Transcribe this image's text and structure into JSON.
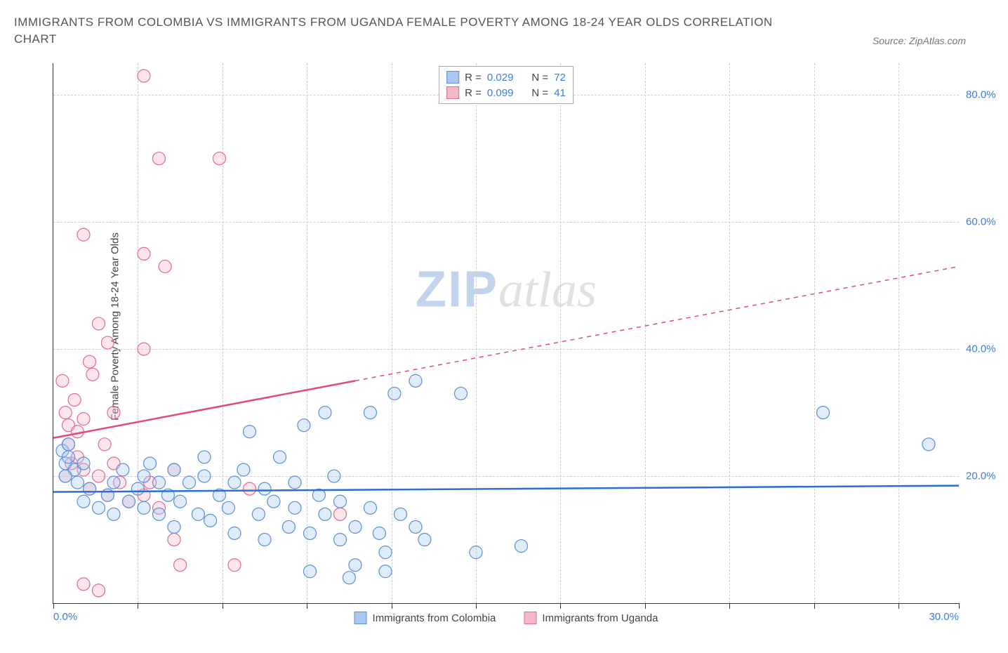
{
  "title": "IMMIGRANTS FROM COLOMBIA VS IMMIGRANTS FROM UGANDA FEMALE POVERTY AMONG 18-24 YEAR OLDS CORRELATION CHART",
  "source": "Source: ZipAtlas.com",
  "y_axis_label": "Female Poverty Among 18-24 Year Olds",
  "watermark_zip": "ZIP",
  "watermark_atlas": "atlas",
  "chart": {
    "type": "scatter",
    "background_color": "#ffffff",
    "grid_color": "#cccccc",
    "axis_color": "#333333",
    "tick_color": "#3b7dd8",
    "xlim": [
      0,
      30
    ],
    "ylim": [
      0,
      85
    ],
    "x_ticks": [
      0,
      2.8,
      5.6,
      8.4,
      11.2,
      14,
      16.8,
      19.6,
      22.4,
      25.2,
      28,
      30
    ],
    "x_tick_labels": {
      "0": "0.0%",
      "30": "30.0%"
    },
    "y_gridlines": [
      20,
      40,
      60,
      80
    ],
    "y_tick_labels": {
      "20": "20.0%",
      "40": "40.0%",
      "60": "60.0%",
      "80": "80.0%"
    },
    "marker_radius": 9,
    "marker_fill_opacity": 0.35,
    "marker_stroke_width": 1.2,
    "trend_line_width": 2.5,
    "series": [
      {
        "name": "Immigrants from Colombia",
        "legend_label": "Immigrants from Colombia",
        "color_fill": "#a8c8f0",
        "color_stroke": "#5b8fd6",
        "trend_color": "#2b6fd6",
        "R": "0.029",
        "N": "72",
        "trend": {
          "x1": 0,
          "y1": 17.5,
          "x2": 30,
          "y2": 18.5
        },
        "trend_solid_until_x": 30,
        "points": [
          [
            0.3,
            24
          ],
          [
            0.4,
            22
          ],
          [
            0.5,
            25
          ],
          [
            0.5,
            23
          ],
          [
            0.7,
            21
          ],
          [
            0.4,
            20
          ],
          [
            0.8,
            19
          ],
          [
            1.0,
            22
          ],
          [
            1.2,
            18
          ],
          [
            1.0,
            16
          ],
          [
            1.5,
            15
          ],
          [
            1.8,
            17
          ],
          [
            2.0,
            19
          ],
          [
            2.0,
            14
          ],
          [
            2.3,
            21
          ],
          [
            2.5,
            16
          ],
          [
            2.8,
            18
          ],
          [
            3.0,
            15
          ],
          [
            3.0,
            20
          ],
          [
            3.2,
            22
          ],
          [
            3.5,
            14
          ],
          [
            3.5,
            19
          ],
          [
            3.8,
            17
          ],
          [
            4.0,
            21
          ],
          [
            4.0,
            12
          ],
          [
            4.2,
            16
          ],
          [
            4.5,
            19
          ],
          [
            4.8,
            14
          ],
          [
            5.0,
            20
          ],
          [
            5.0,
            23
          ],
          [
            5.2,
            13
          ],
          [
            5.5,
            17
          ],
          [
            5.8,
            15
          ],
          [
            6.0,
            19
          ],
          [
            6.0,
            11
          ],
          [
            6.3,
            21
          ],
          [
            6.5,
            27
          ],
          [
            6.8,
            14
          ],
          [
            7.0,
            18
          ],
          [
            7.0,
            10
          ],
          [
            7.3,
            16
          ],
          [
            7.5,
            23
          ],
          [
            7.8,
            12
          ],
          [
            8.0,
            19
          ],
          [
            8.0,
            15
          ],
          [
            8.3,
            28
          ],
          [
            8.5,
            11
          ],
          [
            8.5,
            5
          ],
          [
            8.8,
            17
          ],
          [
            9.0,
            30
          ],
          [
            9.0,
            14
          ],
          [
            9.3,
            20
          ],
          [
            9.5,
            10
          ],
          [
            9.5,
            16
          ],
          [
            9.8,
            4
          ],
          [
            10.0,
            12
          ],
          [
            10.0,
            6
          ],
          [
            10.5,
            30
          ],
          [
            10.5,
            15
          ],
          [
            10.8,
            11
          ],
          [
            11.0,
            8
          ],
          [
            11.0,
            5
          ],
          [
            11.3,
            33
          ],
          [
            11.5,
            14
          ],
          [
            12.0,
            35
          ],
          [
            12.0,
            12
          ],
          [
            12.3,
            10
          ],
          [
            13.5,
            33
          ],
          [
            14.0,
            8
          ],
          [
            15.5,
            9
          ],
          [
            25.5,
            30
          ],
          [
            29.0,
            25
          ]
        ]
      },
      {
        "name": "Immigrants from Uganda",
        "legend_label": "Immigrants from Uganda",
        "color_fill": "#f5b8c9",
        "color_stroke": "#e06b8f",
        "trend_color": "#e04b7a",
        "R": "0.099",
        "N": "41",
        "trend": {
          "x1": 0,
          "y1": 26,
          "x2": 30,
          "y2": 53
        },
        "trend_solid_until_x": 10,
        "points": [
          [
            0.3,
            35
          ],
          [
            0.4,
            30
          ],
          [
            0.5,
            28
          ],
          [
            0.5,
            25
          ],
          [
            0.6,
            22
          ],
          [
            0.4,
            20
          ],
          [
            0.7,
            32
          ],
          [
            0.8,
            27
          ],
          [
            0.8,
            23
          ],
          [
            1.0,
            29
          ],
          [
            1.0,
            21
          ],
          [
            1.2,
            38
          ],
          [
            1.2,
            18
          ],
          [
            1.3,
            36
          ],
          [
            1.5,
            44
          ],
          [
            1.5,
            20
          ],
          [
            1.0,
            58
          ],
          [
            1.7,
            25
          ],
          [
            1.8,
            41
          ],
          [
            1.8,
            17
          ],
          [
            2.0,
            30
          ],
          [
            2.0,
            22
          ],
          [
            2.2,
            19
          ],
          [
            2.5,
            16
          ],
          [
            3.0,
            17
          ],
          [
            3.0,
            83
          ],
          [
            3.0,
            55
          ],
          [
            3.2,
            19
          ],
          [
            3.5,
            70
          ],
          [
            3.5,
            15
          ],
          [
            3.7,
            53
          ],
          [
            4.0,
            21
          ],
          [
            4.0,
            10
          ],
          [
            4.2,
            6
          ],
          [
            5.5,
            70
          ],
          [
            6.0,
            6
          ],
          [
            6.5,
            18
          ],
          [
            3.0,
            40
          ],
          [
            1.0,
            3
          ],
          [
            1.5,
            2
          ],
          [
            9.5,
            14
          ]
        ]
      }
    ]
  },
  "legend_top": {
    "rows": [
      {
        "R_label": "R =",
        "N_label": "N ="
      },
      {
        "R_label": "R =",
        "N_label": "N ="
      }
    ]
  }
}
